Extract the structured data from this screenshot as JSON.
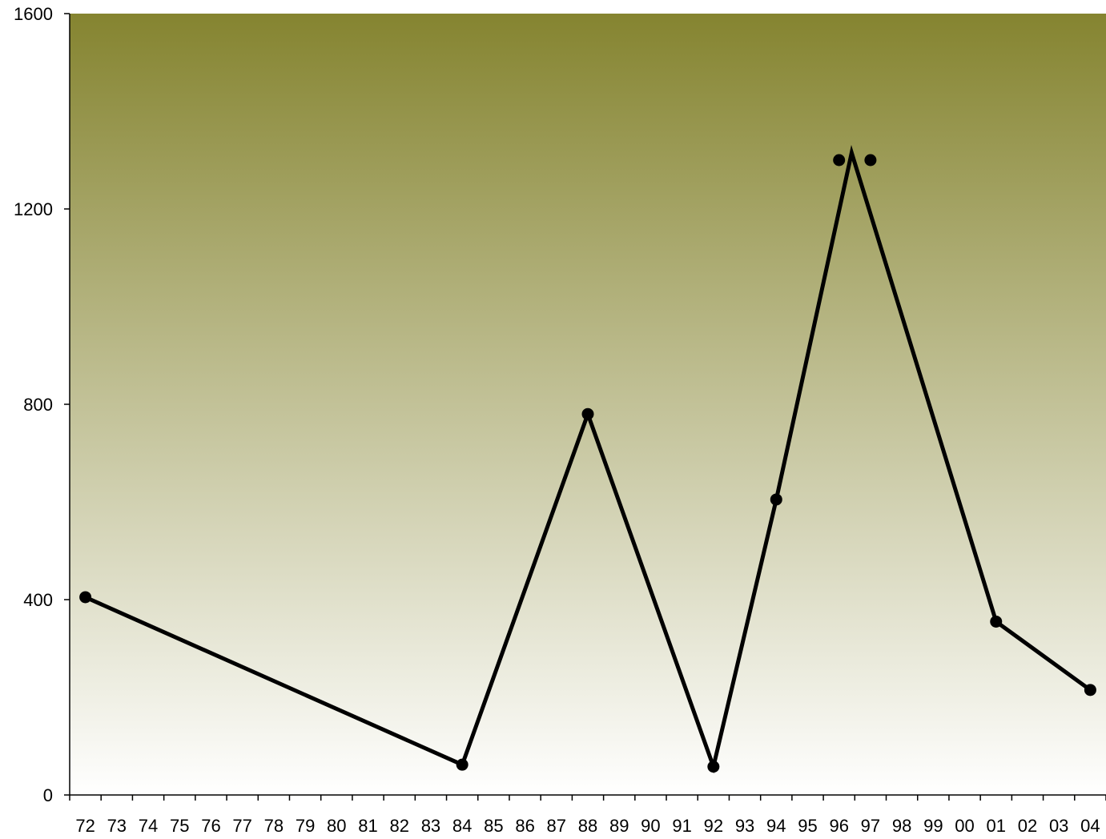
{
  "chart_data": {
    "type": "line",
    "title": "",
    "xlabel": "",
    "ylabel": "",
    "categories": [
      "72",
      "73",
      "74",
      "75",
      "76",
      "77",
      "78",
      "79",
      "80",
      "81",
      "82",
      "83",
      "84",
      "85",
      "86",
      "87",
      "88",
      "89",
      "90",
      "91",
      "92",
      "93",
      "94",
      "95",
      "96",
      "97",
      "98",
      "99",
      "00",
      "01",
      "02",
      "03",
      "04"
    ],
    "y_ticks": [
      0,
      400,
      800,
      1200,
      1600
    ],
    "ylim": [
      0,
      1600
    ],
    "grid": false,
    "legend": "none",
    "colors": {
      "background_top": "#858430",
      "background_bottom": "#ffffff",
      "line": "#000000",
      "marker": "#000000"
    },
    "series": [
      {
        "line_points": [
          {
            "x": 72.0,
            "y": 405
          },
          {
            "x": 84.0,
            "y": 62
          },
          {
            "x": 88.0,
            "y": 780
          },
          {
            "x": 92.0,
            "y": 58
          },
          {
            "x": 94.0,
            "y": 605
          },
          {
            "x": 96.4,
            "y": 1315
          },
          {
            "x": 101.0,
            "y": 355
          },
          {
            "x": 104.0,
            "y": 215
          }
        ],
        "markers": [
          {
            "x": 72.0,
            "y": 405
          },
          {
            "x": 84.0,
            "y": 62
          },
          {
            "x": 88.0,
            "y": 780
          },
          {
            "x": 92.0,
            "y": 58
          },
          {
            "x": 94.0,
            "y": 605
          },
          {
            "x": 96.0,
            "y": 1300
          },
          {
            "x": 97.0,
            "y": 1300
          },
          {
            "x": 101.0,
            "y": 355
          },
          {
            "x": 104.0,
            "y": 215
          }
        ]
      }
    ]
  }
}
